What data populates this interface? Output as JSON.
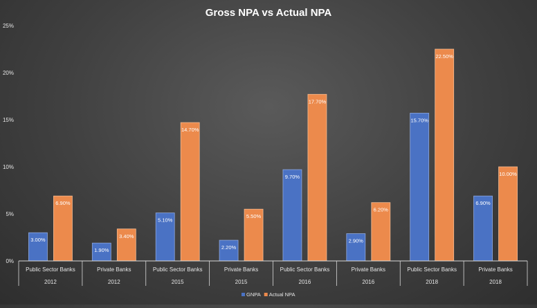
{
  "chart_data": {
    "type": "bar",
    "title": "Gross NPA vs Actual NPA",
    "xlabel": "",
    "ylabel": "",
    "ylim": [
      0,
      25
    ],
    "y_ticks": [
      "0%",
      "5%",
      "10%",
      "15%",
      "20%",
      "25%"
    ],
    "y_tick_values": [
      0,
      5,
      10,
      15,
      20,
      25
    ],
    "categories": [
      {
        "group": "Public Sector Banks",
        "year": "2012"
      },
      {
        "group": "Private Banks",
        "year": "2012"
      },
      {
        "group": "Public Sector Banks",
        "year": "2015"
      },
      {
        "group": "Private Banks",
        "year": "2015"
      },
      {
        "group": "Public Sector Banks",
        "year": "2016"
      },
      {
        "group": "Private Banks",
        "year": "2016"
      },
      {
        "group": "Public Sector Banks",
        "year": "2018"
      },
      {
        "group": "Private Banks",
        "year": "2018"
      }
    ],
    "series": [
      {
        "name": "GNPA",
        "color": "#4a72c4",
        "values": [
          3.0,
          1.9,
          5.1,
          2.2,
          9.7,
          2.9,
          15.7,
          6.9
        ],
        "labels": [
          "3.00%",
          "1.90%",
          "5.10%",
          "2.20%",
          "9.70%",
          "2.90%",
          "15.70%",
          "6.90%"
        ]
      },
      {
        "name": "Actual NPA",
        "color": "#ec8a4c",
        "values": [
          6.9,
          3.4,
          14.7,
          5.5,
          17.7,
          6.2,
          22.5,
          10.0
        ],
        "labels": [
          "6.90%",
          "3.40%",
          "14.70%",
          "5.50%",
          "17.70%",
          "6.20%",
          "22.50%",
          "10.00%"
        ]
      }
    ],
    "legend_position": "bottom",
    "grid": false
  }
}
